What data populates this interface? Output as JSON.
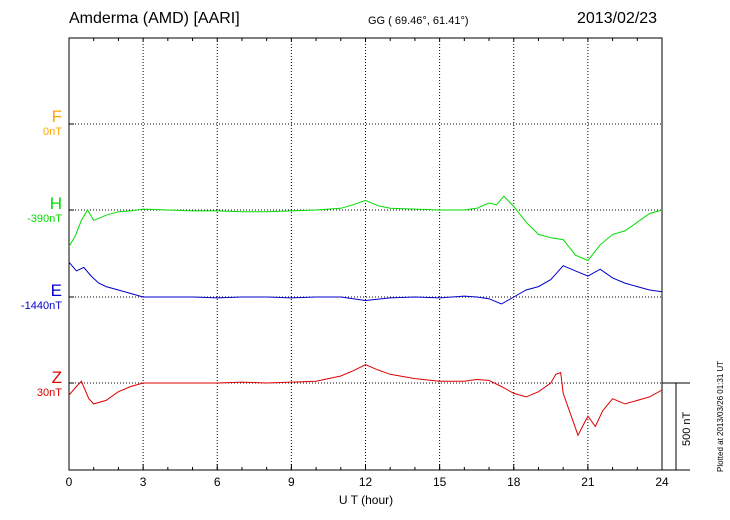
{
  "header": {
    "station": "Amderma (AMD)  [AARI]",
    "coords": "GG ( 69.46°,  61.41°)",
    "date": "2013/02/23"
  },
  "components": [
    {
      "letter": "F",
      "base": "0nT",
      "color": "#ffa500"
    },
    {
      "letter": "H",
      "base": "-390nT",
      "color": "#00dd00"
    },
    {
      "letter": "E",
      "base": "-1440nT",
      "color": "#0000cc"
    },
    {
      "letter": "Z",
      "base": "30nT",
      "color": "#dd0000"
    }
  ],
  "side_note": "Plotted at 2013/03/26 01:31 UT",
  "scale_label": "500 nT",
  "chart_data": {
    "type": "line",
    "xlabel": "U T (hour)",
    "xlim": [
      0,
      24
    ],
    "xticks": [
      0,
      3,
      6,
      9,
      12,
      15,
      18,
      21,
      24
    ],
    "scale_bar_nT": 500,
    "series": [
      {
        "name": "H",
        "color": "#00dd00",
        "x": [
          0,
          0.25,
          0.5,
          0.75,
          1,
          1.5,
          2,
          2.5,
          3,
          4,
          5,
          6,
          7,
          8,
          9,
          10,
          11,
          11.5,
          12,
          12.5,
          13,
          14,
          15,
          16,
          16.5,
          17,
          17.3,
          17.6,
          18,
          18.5,
          19,
          19.5,
          20,
          20.5,
          21,
          21.5,
          22,
          22.5,
          23,
          23.5,
          24
        ],
        "y": [
          -210,
          -150,
          -60,
          0,
          -60,
          -30,
          -10,
          -5,
          5,
          0,
          -5,
          -5,
          -10,
          -10,
          -5,
          0,
          10,
          30,
          55,
          25,
          10,
          5,
          0,
          0,
          10,
          40,
          30,
          80,
          20,
          -70,
          -140,
          -160,
          -170,
          -260,
          -290,
          -200,
          -140,
          -120,
          -70,
          -20,
          0
        ]
      },
      {
        "name": "E",
        "color": "#0000cc",
        "x": [
          0,
          0.3,
          0.6,
          0.9,
          1.2,
          1.5,
          2,
          2.5,
          3,
          4,
          5,
          6,
          7,
          8,
          9,
          10,
          11,
          12,
          13,
          14,
          15,
          16,
          16.5,
          17,
          17.5,
          18,
          18.5,
          19,
          19.5,
          20,
          20.5,
          21,
          21.5,
          22,
          22.5,
          23,
          23.5,
          24
        ],
        "y": [
          200,
          150,
          170,
          120,
          80,
          60,
          40,
          20,
          0,
          0,
          0,
          -5,
          0,
          0,
          -5,
          0,
          0,
          -20,
          -5,
          0,
          -5,
          5,
          0,
          -10,
          -40,
          0,
          40,
          60,
          100,
          180,
          150,
          120,
          160,
          110,
          80,
          60,
          40,
          30
        ]
      },
      {
        "name": "Z",
        "color": "#dd0000",
        "x": [
          0,
          0.3,
          0.5,
          0.8,
          1,
          1.5,
          2,
          2.5,
          3,
          4,
          5,
          6,
          7,
          8,
          9,
          10,
          11,
          11.5,
          12,
          12.5,
          13,
          14,
          15,
          16,
          16.5,
          17,
          17.5,
          18,
          18.5,
          19,
          19.5,
          19.7,
          19.9,
          20,
          20.3,
          20.6,
          21,
          21.3,
          21.6,
          22,
          22.5,
          23,
          23.5,
          24
        ],
        "y": [
          -70,
          -20,
          10,
          -90,
          -120,
          -100,
          -50,
          -20,
          0,
          0,
          0,
          0,
          5,
          0,
          5,
          10,
          40,
          70,
          105,
          75,
          50,
          25,
          10,
          10,
          20,
          15,
          -20,
          -60,
          -80,
          -50,
          0,
          50,
          60,
          -60,
          -180,
          -300,
          -190,
          -250,
          -160,
          -90,
          -120,
          -100,
          -80,
          -40
        ]
      }
    ]
  }
}
